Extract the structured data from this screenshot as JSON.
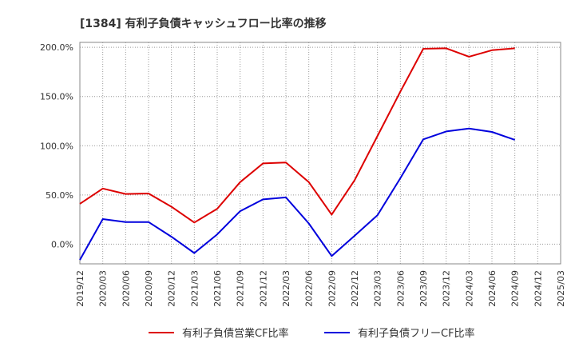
{
  "chart_data": {
    "type": "line",
    "title": "[1384]  有利子負債キャッシュフロー比率の推移",
    "xlabel": "",
    "ylabel": "",
    "ylim": [
      -20,
      205
    ],
    "yticks": [
      0,
      50,
      100,
      150,
      200
    ],
    "ytick_labels": [
      "0.0%",
      "50.0%",
      "100.0%",
      "150.0%",
      "200.0%"
    ],
    "grid": true,
    "legend_position": "bottom",
    "categories": [
      "2019/12",
      "2020/03",
      "2020/06",
      "2020/09",
      "2020/12",
      "2021/03",
      "2021/06",
      "2021/09",
      "2021/12",
      "2022/03",
      "2022/06",
      "2022/09",
      "2022/12",
      "2023/03",
      "2023/06",
      "2023/09",
      "2023/12",
      "2024/03",
      "2024/06",
      "2024/09",
      "2024/12",
      "2025/03"
    ],
    "series": [
      {
        "name": "有利子負債営業CF比率",
        "color": "#dd0000",
        "values": [
          41,
          56.5,
          51,
          51.5,
          38,
          22,
          36,
          63,
          82,
          83,
          63,
          30,
          65,
          110,
          155,
          198.5,
          199,
          190.5,
          197,
          199,
          null,
          null
        ]
      },
      {
        "name": "有利子負債フリーCF比率",
        "color": "#0000dd",
        "values": [
          -16,
          25.5,
          22.5,
          22.5,
          7.5,
          -9,
          10,
          33.5,
          45.5,
          47.5,
          21,
          -12,
          8.5,
          29.5,
          67,
          106.5,
          114.5,
          117.5,
          114,
          106,
          null,
          null
        ]
      }
    ]
  }
}
